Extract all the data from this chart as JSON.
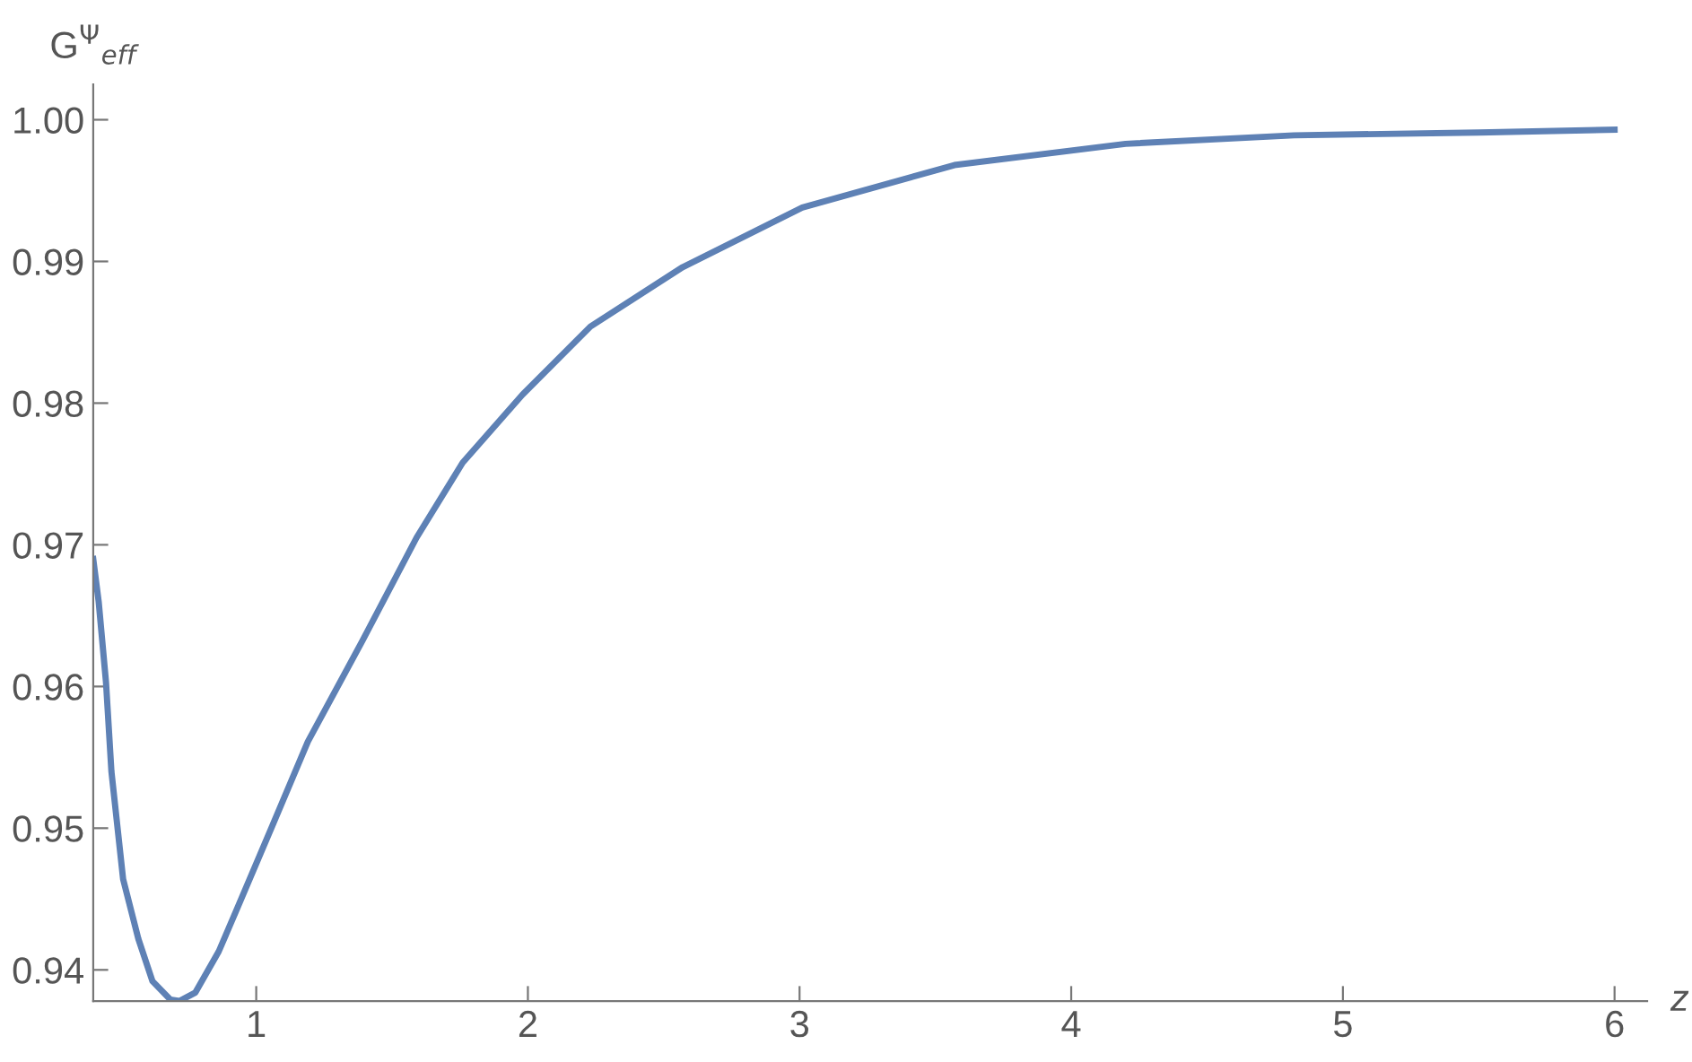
{
  "chart_data": {
    "type": "line",
    "xlabel": "z",
    "ylabel": "G$^{Ψ}$$_{eff}$",
    "x": [
      0.4,
      0.42,
      0.447,
      0.467,
      0.51,
      0.566,
      0.618,
      0.684,
      0.717,
      0.776,
      0.862,
      0.947,
      1.06,
      1.19,
      1.39,
      1.59,
      1.76,
      1.98,
      2.23,
      2.57,
      3.01,
      3.57,
      4.2,
      4.82,
      5.5,
      6.0
    ],
    "series": [
      {
        "color": "#5e81b5",
        "values": [
          0.969,
          0.966,
          0.9603,
          0.954,
          0.9464,
          0.9422,
          0.9392,
          0.9379,
          0.9378,
          0.9384,
          0.9413,
          0.9451,
          0.9502,
          0.9561,
          0.9632,
          0.9705,
          0.9758,
          0.9806,
          0.9854,
          0.9896,
          0.9938,
          0.9968,
          0.9983,
          0.9989,
          0.9991,
          0.9993
        ]
      }
    ],
    "xlim": [
      0.4,
      6.12
    ],
    "ylim": [
      0.9378,
      1.0025
    ],
    "xticks": [
      1,
      2,
      3,
      4,
      5,
      6
    ],
    "yticks": [
      0.94,
      0.95,
      0.96,
      0.97,
      0.98,
      0.99,
      {
        "value": 1.0,
        "label": "1.00"
      }
    ],
    "grid": false,
    "marker": "none",
    "line_style": "solid"
  }
}
